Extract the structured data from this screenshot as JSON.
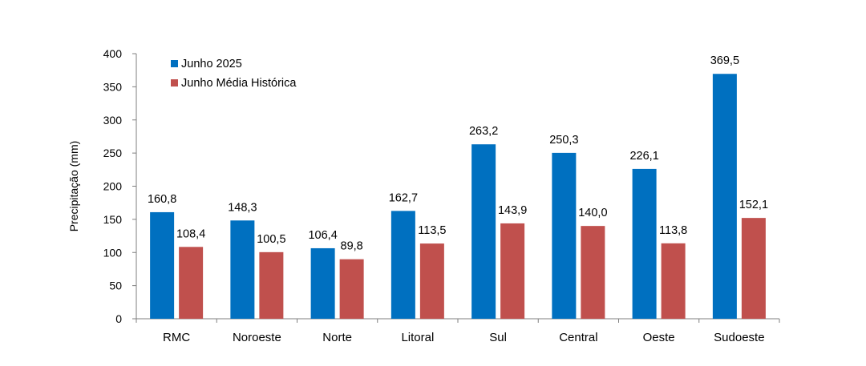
{
  "chart_data": {
    "type": "bar",
    "title": "",
    "xlabel": "",
    "ylabel": "Precipitação (mm)",
    "ylim": [
      0,
      400
    ],
    "yticks": [
      0,
      50,
      100,
      150,
      200,
      250,
      300,
      350,
      400
    ],
    "grid": false,
    "legend_position": "top-left",
    "categories": [
      "RMC",
      "Noroeste",
      "Norte",
      "Litoral",
      "Sul",
      "Central",
      "Oeste",
      "Sudoeste"
    ],
    "series": [
      {
        "name": "Junho 2025",
        "color": "#0070C0",
        "values": [
          160.8,
          148.3,
          106.4,
          162.7,
          263.2,
          250.3,
          226.1,
          369.5
        ],
        "labels": [
          "160,8",
          "148,3",
          "106,4",
          "162,7",
          "263,2",
          "250,3",
          "226,1",
          "369,5"
        ]
      },
      {
        "name": "Junho Média Histórica",
        "color": "#C0504D",
        "values": [
          108.4,
          100.5,
          89.8,
          113.5,
          143.9,
          140.0,
          113.8,
          152.1
        ],
        "labels": [
          "108,4",
          "100,5",
          "89,8",
          "113,5",
          "143,9",
          "140,0",
          "113,8",
          "152,1"
        ]
      }
    ]
  }
}
